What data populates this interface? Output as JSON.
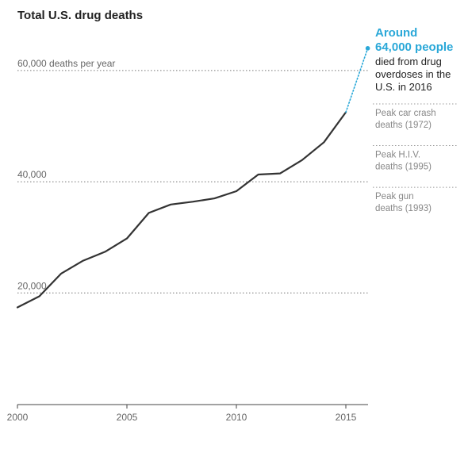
{
  "chart_data": {
    "type": "line",
    "title": "Total U.S. drug deaths",
    "xlabel": "",
    "ylabel": "",
    "xlim": [
      2000,
      2016
    ],
    "ylim": [
      0,
      66000
    ],
    "grid": false,
    "x_ticks": [
      "2000",
      "2005",
      "2010",
      "2015"
    ],
    "y_reference_lines": [
      {
        "value": 60000,
        "label": "60,000 deaths per year"
      },
      {
        "value": 40000,
        "label": "40,000"
      },
      {
        "value": 20000,
        "label": "20,000"
      }
    ],
    "series": [
      {
        "x": [
          2000,
          2001,
          2002,
          2003,
          2004,
          2005,
          2006,
          2007,
          2008,
          2009,
          2010,
          2011,
          2012,
          2013,
          2014,
          2015
        ],
        "y": [
          17400,
          19400,
          23500,
          25800,
          27400,
          29800,
          34400,
          35900,
          36400,
          37000,
          38300,
          41300,
          41500,
          43900,
          47100,
          52500
        ]
      },
      {
        "x": [
          2015,
          2016
        ],
        "y": [
          52500,
          64000
        ],
        "style": "dotted"
      }
    ],
    "annotations": {
      "lead_line1": "Around",
      "lead_line2": "64,000 people",
      "detail_lines": [
        "died from drug",
        "overdoses in the",
        "U.S. in 2016"
      ]
    },
    "peaks": [
      {
        "value": 54000,
        "lines": [
          "Peak car crash",
          "deaths (1972)"
        ]
      },
      {
        "value": 46500,
        "lines": [
          "Peak H.I.V.",
          "deaths (1995)"
        ]
      },
      {
        "value": 39000,
        "lines": [
          "Peak gun",
          "deaths (1993)"
        ]
      }
    ]
  },
  "colors": {
    "line": "#333333",
    "highlight": "#2aa8d8",
    "reference": "#777777",
    "peak_line": "#999999"
  }
}
